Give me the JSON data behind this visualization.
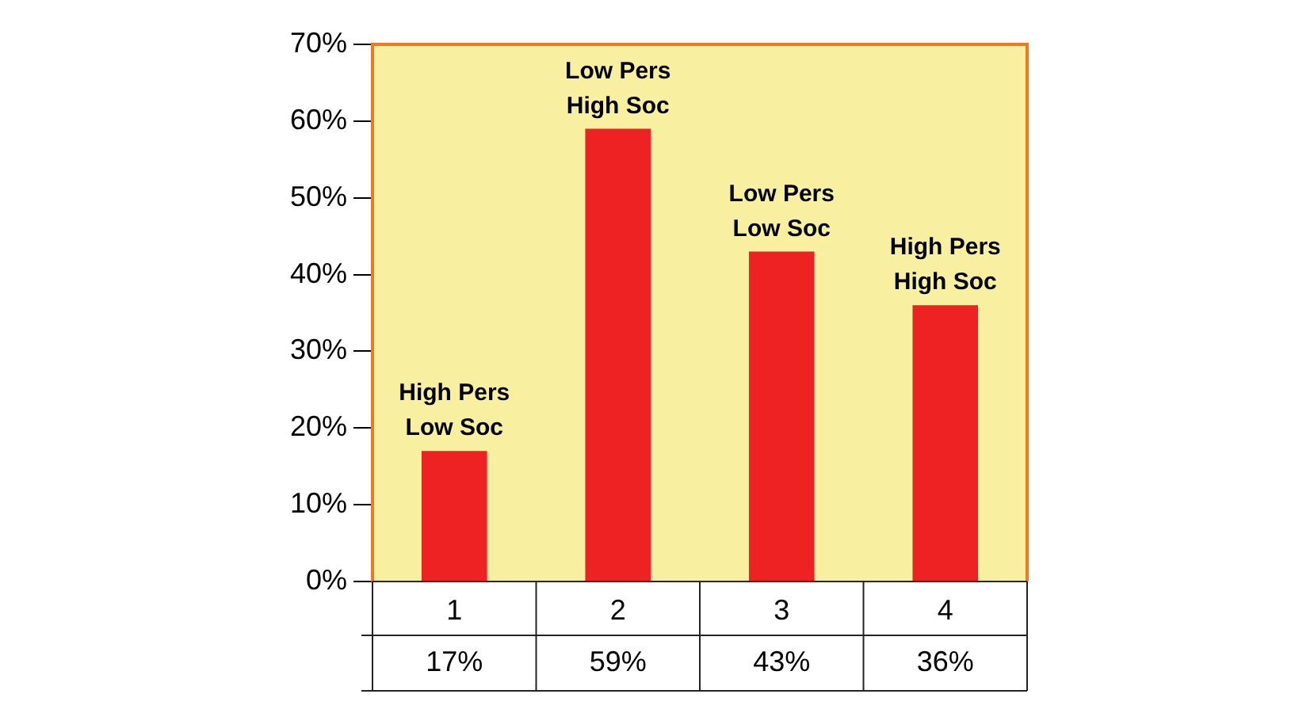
{
  "chart_data": {
    "type": "bar",
    "categories": [
      "1",
      "2",
      "3",
      "4"
    ],
    "values": [
      17,
      59,
      43,
      36
    ],
    "color": "#ee2222",
    "value_labels": [
      "17%",
      "59%",
      "43%",
      "36%"
    ],
    "ylim": [
      0,
      70
    ],
    "yticks": [
      {
        "value": 0,
        "label": "0%"
      },
      {
        "value": 10,
        "label": "10%"
      },
      {
        "value": 20,
        "label": "20%"
      },
      {
        "value": 30,
        "label": "30%"
      },
      {
        "value": 40,
        "label": "40%"
      },
      {
        "value": 50,
        "label": "50%"
      },
      {
        "value": 60,
        "label": "60%"
      },
      {
        "value": 70,
        "label": "70%"
      }
    ],
    "annotations": [
      {
        "text": "High Pers\nLow Soc",
        "x": "1",
        "y": 17
      },
      {
        "text": "Low Pers\nHigh Soc",
        "x": "2",
        "y": 59
      },
      {
        "text": "Low Pers\nLow Soc",
        "x": "3",
        "y": 43
      },
      {
        "text": "High Pers\nHigh Soc",
        "x": "4",
        "y": 36
      }
    ],
    "legend": false
  }
}
